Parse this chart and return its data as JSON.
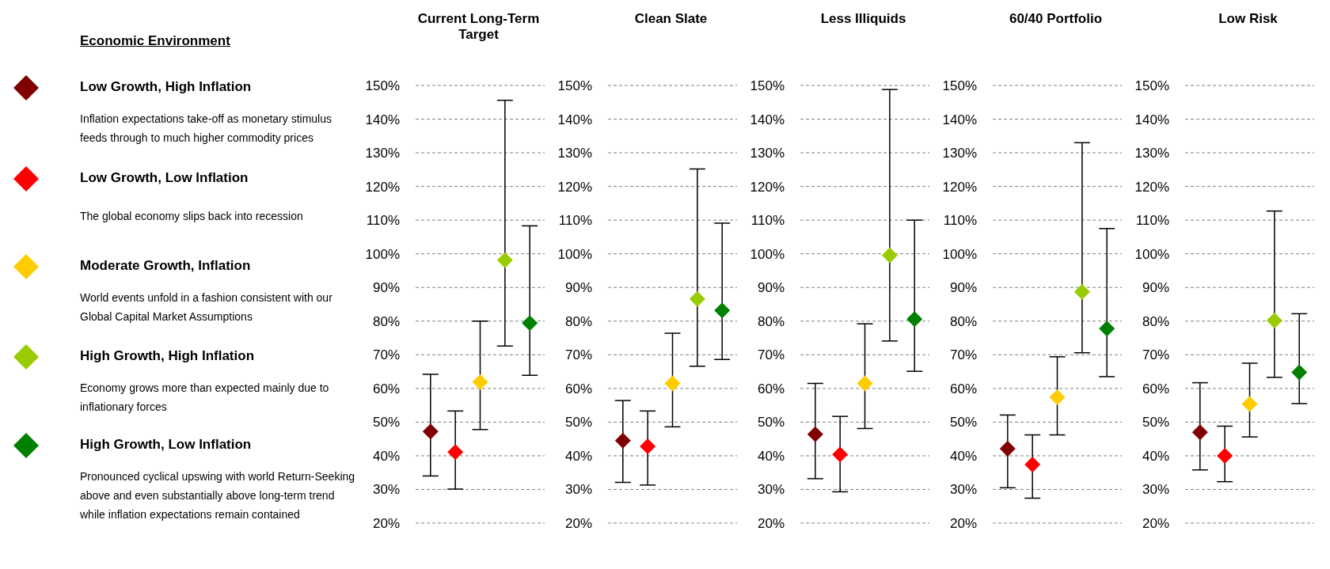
{
  "chart_data": [
    {
      "type": "other",
      "title": "Economic Environment",
      "annotations": [
        "Low Growth, High Inflation",
        "Inflation expectations take-off as monetary stimulus feeds through to much higher commodity prices",
        "Low Growth, Low Inflation",
        "The global economy slips back into recession",
        "Moderate Growth, Inflation",
        "World events unfold in a fashion consistent with our Global Capital Market Assumptions",
        "High Growth, High Inflation",
        "Economy grows more than expected mainly due to inflationary forces",
        "High Growth, Low Inflation",
        "Pronounced cyclical upswing with world Return-Seeking above and even substantially above long-term trend while inflation expectations remain contained"
      ]
    },
    {
      "type": "scatter",
      "title": "Current Long-Term Target",
      "categories": [
        null,
        null,
        null,
        null,
        null
      ],
      "values": [
        47.2,
        41.1,
        61.9,
        98.1,
        79.4
      ],
      "errors": [
        [
          34,
          64.2
        ],
        [
          30.1,
          53.3
        ],
        [
          47.8,
          80
        ],
        [
          72.6,
          145.6
        ],
        [
          63.9,
          108.3
        ]
      ],
      "colors": [
        "#800000",
        "#ff0000",
        "#ffcc00",
        "#99cc00",
        "#008000"
      ],
      "marker": "diamond",
      "ylim": [
        20,
        150
      ],
      "yticks": [
        {
          "value": 20,
          "label": "20%"
        },
        {
          "value": 30,
          "label": "30%"
        },
        {
          "value": 40,
          "label": "40%"
        },
        {
          "value": 50,
          "label": "50%"
        },
        {
          "value": 60,
          "label": "60%"
        },
        {
          "value": 70,
          "label": "70%"
        },
        {
          "value": 80,
          "label": "80%"
        },
        {
          "value": 90,
          "label": "90%"
        },
        {
          "value": 100,
          "label": "100%"
        },
        {
          "value": 110,
          "label": "110%"
        },
        {
          "value": 120,
          "label": "120%"
        },
        {
          "value": 130,
          "label": "130%"
        },
        {
          "value": 140,
          "label": "140%"
        },
        {
          "value": 150,
          "label": "150%"
        }
      ],
      "grid": "y",
      "tick_labels": "y"
    },
    {
      "type": "scatter",
      "title": "Clean Slate",
      "categories": [
        null,
        null,
        null,
        null,
        null
      ],
      "values": [
        44.5,
        42.8,
        61.5,
        86.6,
        83.2
      ],
      "errors": [
        [
          32.1,
          56.4
        ],
        [
          31.3,
          53.3
        ],
        [
          48.6,
          76.4
        ],
        [
          66.6,
          125.2
        ],
        [
          68.6,
          109.1
        ]
      ],
      "colors": [
        "#800000",
        "#ff0000",
        "#ffcc00",
        "#99cc00",
        "#008000"
      ],
      "marker": "diamond",
      "ylim": [
        20,
        150
      ],
      "yticks": [
        {
          "value": 20,
          "label": "20%"
        },
        {
          "value": 30,
          "label": "30%"
        },
        {
          "value": 40,
          "label": "40%"
        },
        {
          "value": 50,
          "label": "50%"
        },
        {
          "value": 60,
          "label": "60%"
        },
        {
          "value": 70,
          "label": "70%"
        },
        {
          "value": 80,
          "label": "80%"
        },
        {
          "value": 90,
          "label": "90%"
        },
        {
          "value": 100,
          "label": "100%"
        },
        {
          "value": 110,
          "label": "110%"
        },
        {
          "value": 120,
          "label": "120%"
        },
        {
          "value": 130,
          "label": "130%"
        },
        {
          "value": 140,
          "label": "140%"
        },
        {
          "value": 150,
          "label": "150%"
        }
      ],
      "grid": "y",
      "tick_labels": "y"
    },
    {
      "type": "scatter",
      "title": "Less Illiquids",
      "categories": [
        null,
        null,
        null,
        null,
        null
      ],
      "values": [
        46.4,
        40.4,
        61.5,
        99.6,
        80.6
      ],
      "errors": [
        [
          33.2,
          61.5
        ],
        [
          29.3,
          51.7
        ],
        [
          48.1,
          79.2
        ],
        [
          74.1,
          148.8
        ],
        [
          65.1,
          110
        ]
      ],
      "colors": [
        "#800000",
        "#ff0000",
        "#ffcc00",
        "#99cc00",
        "#008000"
      ],
      "marker": "diamond",
      "ylim": [
        20,
        150
      ],
      "yticks": [
        {
          "value": 20,
          "label": "20%"
        },
        {
          "value": 30,
          "label": "30%"
        },
        {
          "value": 40,
          "label": "40%"
        },
        {
          "value": 50,
          "label": "50%"
        },
        {
          "value": 60,
          "label": "60%"
        },
        {
          "value": 70,
          "label": "70%"
        },
        {
          "value": 80,
          "label": "80%"
        },
        {
          "value": 90,
          "label": "90%"
        },
        {
          "value": 100,
          "label": "100%"
        },
        {
          "value": 110,
          "label": "110%"
        },
        {
          "value": 120,
          "label": "120%"
        },
        {
          "value": 130,
          "label": "130%"
        },
        {
          "value": 140,
          "label": "140%"
        },
        {
          "value": 150,
          "label": "150%"
        }
      ],
      "grid": "y",
      "tick_labels": "y"
    },
    {
      "type": "scatter",
      "title": "60/40 Portfolio",
      "categories": [
        null,
        null,
        null,
        null,
        null
      ],
      "values": [
        42.1,
        37.4,
        57.4,
        88.7,
        77.8
      ],
      "errors": [
        [
          30.5,
          52.1
        ],
        [
          27.4,
          46.2
        ],
        [
          46.2,
          69.4
        ],
        [
          70.6,
          133
        ],
        [
          63.5,
          107.5
        ]
      ],
      "colors": [
        "#800000",
        "#ff0000",
        "#ffcc00",
        "#99cc00",
        "#008000"
      ],
      "marker": "diamond",
      "ylim": [
        20,
        150
      ],
      "yticks": [
        {
          "value": 20,
          "label": "20%"
        },
        {
          "value": 30,
          "label": "30%"
        },
        {
          "value": 40,
          "label": "40%"
        },
        {
          "value": 50,
          "label": "50%"
        },
        {
          "value": 60,
          "label": "60%"
        },
        {
          "value": 70,
          "label": "70%"
        },
        {
          "value": 80,
          "label": "80%"
        },
        {
          "value": 90,
          "label": "90%"
        },
        {
          "value": 100,
          "label": "100%"
        },
        {
          "value": 110,
          "label": "110%"
        },
        {
          "value": 120,
          "label": "120%"
        },
        {
          "value": 130,
          "label": "130%"
        },
        {
          "value": 140,
          "label": "140%"
        },
        {
          "value": 150,
          "label": "150%"
        }
      ],
      "grid": "y",
      "tick_labels": "y"
    },
    {
      "type": "scatter",
      "title": "Low Risk",
      "categories": [
        null,
        null,
        null,
        null,
        null
      ],
      "values": [
        47,
        40,
        55.4,
        80.2,
        64.8
      ],
      "errors": [
        [
          35.8,
          61.7
        ],
        [
          32.3,
          48.8
        ],
        [
          45.6,
          67.5
        ],
        [
          63.3,
          112.7
        ],
        [
          55.5,
          82.2
        ]
      ],
      "colors": [
        "#800000",
        "#ff0000",
        "#ffcc00",
        "#99cc00",
        "#008000"
      ],
      "marker": "diamond",
      "ylim": [
        20,
        150
      ],
      "yticks": [
        {
          "value": 20,
          "label": "20%"
        },
        {
          "value": 30,
          "label": "30%"
        },
        {
          "value": 40,
          "label": "40%"
        },
        {
          "value": 50,
          "label": "50%"
        },
        {
          "value": 60,
          "label": "60%"
        },
        {
          "value": 70,
          "label": "70%"
        },
        {
          "value": 80,
          "label": "80%"
        },
        {
          "value": 90,
          "label": "90%"
        },
        {
          "value": 100,
          "label": "100%"
        },
        {
          "value": 110,
          "label": "110%"
        },
        {
          "value": 120,
          "label": "120%"
        },
        {
          "value": 130,
          "label": "130%"
        },
        {
          "value": 140,
          "label": "140%"
        },
        {
          "value": 150,
          "label": "150%"
        }
      ],
      "grid": "y",
      "tick_labels": "y"
    }
  ]
}
